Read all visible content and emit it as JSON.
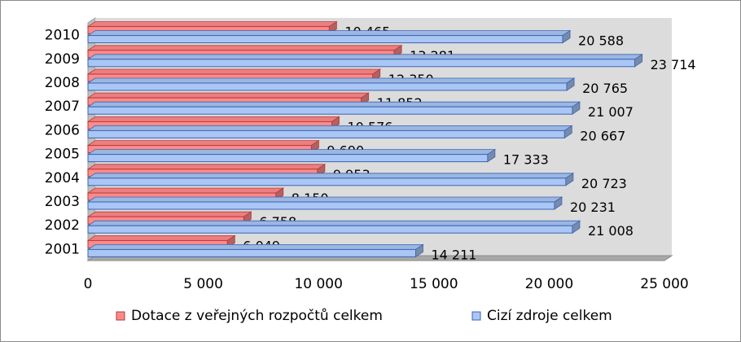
{
  "chart_data": {
    "type": "bar",
    "orientation": "horizontal",
    "style": "3d-clustered",
    "categories": [
      "2001",
      "2002",
      "2003",
      "2004",
      "2005",
      "2006",
      "2007",
      "2008",
      "2009",
      "2010"
    ],
    "series": [
      {
        "name": "Dotace z veřejných rozpočtů celkem",
        "color": "#ff8a8a",
        "edge_color": "#b23a3a",
        "values": [
          6049,
          6758,
          8150,
          9953,
          9690,
          10576,
          11852,
          12350,
          13281,
          10465
        ],
        "value_labels": [
          "6 049",
          "6 758",
          "8 150",
          "9 953",
          "9 690",
          "10 576",
          "11 852",
          "12 350",
          "13 281",
          "10 465"
        ]
      },
      {
        "name": "Cizí zdroje celkem",
        "color": "#a9c6f5",
        "edge_color": "#3b64b0",
        "values": [
          14211,
          21008,
          20231,
          20723,
          17333,
          20667,
          21007,
          20765,
          23714,
          20588
        ],
        "value_labels": [
          "14 211",
          "21 008",
          "20 231",
          "20 723",
          "17 333",
          "20 667",
          "21 007",
          "20 765",
          "23 714",
          "20 588"
        ]
      }
    ],
    "xlim": [
      0,
      25000
    ],
    "xticks": [
      0,
      5000,
      10000,
      15000,
      20000,
      25000
    ],
    "xtick_labels": [
      "0",
      "5 000",
      "10 000",
      "15 000",
      "20 000",
      "25 000"
    ],
    "title": "",
    "xlabel": "",
    "ylabel": "",
    "grid": false,
    "legend_position": "bottom",
    "wall_color": "#dcdcdc"
  }
}
